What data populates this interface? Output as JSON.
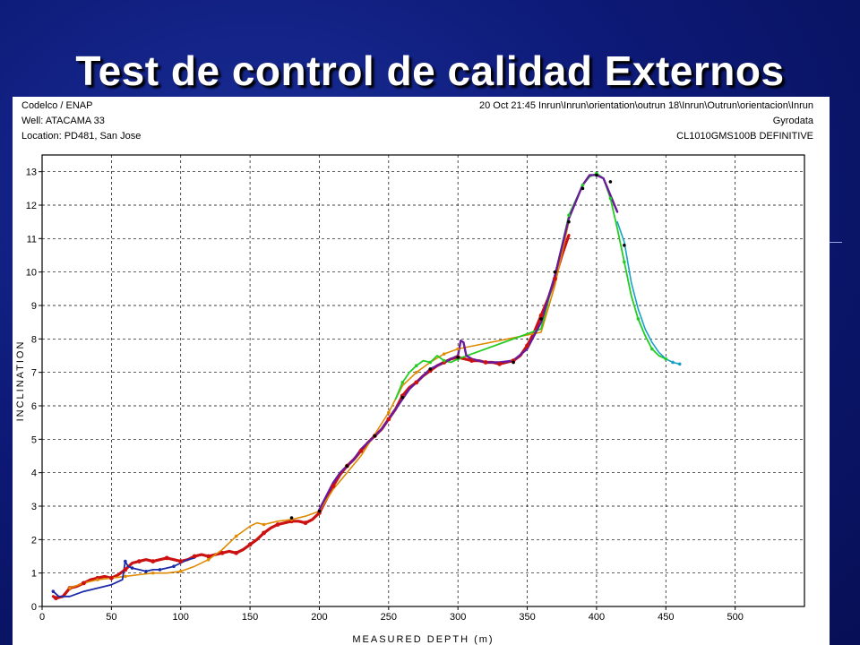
{
  "slide": {
    "title": "Test de control de calidad Externos"
  },
  "header": {
    "left": [
      "Codelco / ENAP",
      "Well: ATACAMA 33",
      "Location: PD481, San Jose"
    ],
    "right": [
      "20 Oct 21:45 Inrun\\Inrun\\orientation\\outrun 18\\Inrun\\Outrun\\orientacion\\Inrun",
      "Gyrodata",
      "CL1010GMS100B DEFINITIVE"
    ]
  },
  "chart_data": {
    "type": "line",
    "title": "",
    "xlabel": "MEASURED DEPTH (m)",
    "ylabel": "INCLINATION",
    "xlim": [
      0,
      550
    ],
    "ylim": [
      0,
      13.5
    ],
    "xticks": [
      0,
      50,
      100,
      150,
      200,
      250,
      300,
      350,
      400,
      450,
      500
    ],
    "yticks": [
      0,
      1,
      2,
      3,
      4,
      5,
      6,
      7,
      8,
      9,
      10,
      11,
      12,
      13
    ],
    "grid": true,
    "colors": {
      "red": "#cc1111",
      "orange": "#e08a00",
      "blue": "#1a2aa8",
      "green": "#22cc22",
      "cyan": "#18a0c8",
      "purple": "#6a1a9a",
      "black": "#000000"
    },
    "series": [
      {
        "color": "red",
        "x": [
          8,
          10,
          15,
          20,
          25,
          30,
          35,
          40,
          45,
          50,
          55,
          60,
          65,
          70,
          75,
          80,
          85,
          90,
          95,
          100,
          105,
          110,
          115,
          120,
          125,
          130,
          135,
          140,
          145,
          150,
          155,
          160,
          165,
          170,
          175,
          180,
          185,
          190,
          195,
          200,
          205,
          210,
          215,
          220,
          225,
          230,
          235,
          240,
          245,
          250,
          255,
          260,
          265,
          270,
          275,
          280,
          285,
          290,
          295,
          300,
          305,
          310,
          315,
          320,
          325,
          330,
          335,
          340,
          345,
          350,
          355,
          360,
          365,
          370,
          375,
          380
        ],
        "y": [
          0.3,
          0.25,
          0.3,
          0.55,
          0.6,
          0.7,
          0.8,
          0.85,
          0.9,
          0.85,
          0.95,
          1.1,
          1.3,
          1.35,
          1.4,
          1.35,
          1.4,
          1.45,
          1.4,
          1.35,
          1.4,
          1.5,
          1.55,
          1.5,
          1.55,
          1.6,
          1.65,
          1.6,
          1.7,
          1.85,
          2.0,
          2.2,
          2.35,
          2.45,
          2.5,
          2.55,
          2.55,
          2.5,
          2.6,
          2.8,
          3.2,
          3.6,
          3.95,
          4.2,
          4.4,
          4.65,
          4.9,
          5.1,
          5.3,
          5.6,
          5.9,
          6.3,
          6.55,
          6.7,
          6.9,
          7.05,
          7.2,
          7.3,
          7.4,
          7.45,
          7.4,
          7.35,
          7.35,
          7.3,
          7.3,
          7.25,
          7.3,
          7.35,
          7.5,
          7.8,
          8.2,
          8.7,
          9.2,
          9.8,
          10.5,
          11.1
        ]
      },
      {
        "color": "orange",
        "x": [
          20,
          30,
          40,
          50,
          60,
          70,
          80,
          90,
          100,
          110,
          120,
          130,
          140,
          150,
          155,
          160,
          170,
          180,
          190,
          200,
          210,
          230,
          250,
          260,
          270,
          280,
          290,
          300,
          360,
          370,
          380
        ],
        "y": [
          0.55,
          0.7,
          0.8,
          0.85,
          0.9,
          0.95,
          1.0,
          1.0,
          1.05,
          1.2,
          1.4,
          1.7,
          2.1,
          2.4,
          2.5,
          2.45,
          2.55,
          2.6,
          2.7,
          2.85,
          3.5,
          4.5,
          5.8,
          6.6,
          7.0,
          7.3,
          7.55,
          7.7,
          8.2,
          9.6,
          11.5
        ]
      },
      {
        "color": "blue",
        "x": [
          8,
          12,
          20,
          30,
          40,
          50,
          58,
          60,
          62,
          65,
          70,
          75,
          80,
          85,
          90,
          95,
          100,
          105,
          110
        ],
        "y": [
          0.45,
          0.3,
          0.3,
          0.45,
          0.55,
          0.65,
          0.8,
          1.35,
          1.2,
          1.15,
          1.1,
          1.05,
          1.1,
          1.1,
          1.15,
          1.2,
          1.3,
          1.4,
          1.45
        ]
      },
      {
        "color": "green",
        "x": [
          255,
          260,
          265,
          270,
          275,
          280,
          285,
          290,
          295,
          300,
          360,
          370,
          380,
          390,
          395,
          400,
          405,
          410,
          415,
          420,
          425,
          430,
          435,
          440,
          445,
          450
        ],
        "y": [
          6.2,
          6.7,
          7.0,
          7.2,
          7.35,
          7.3,
          7.5,
          7.35,
          7.3,
          7.4,
          8.3,
          9.9,
          11.7,
          12.6,
          12.85,
          12.95,
          12.8,
          12.2,
          11.3,
          10.3,
          9.3,
          8.6,
          8.1,
          7.7,
          7.5,
          7.4
        ]
      },
      {
        "color": "cyan",
        "x": [
          415,
          420,
          425,
          430,
          435,
          440,
          445,
          450,
          455,
          460
        ],
        "y": [
          11.5,
          10.9,
          9.7,
          8.9,
          8.3,
          7.9,
          7.6,
          7.4,
          7.3,
          7.25
        ]
      },
      {
        "color": "purple",
        "x": [
          200,
          205,
          210,
          215,
          220,
          225,
          230,
          235,
          240,
          245,
          250,
          255,
          260,
          265,
          270,
          275,
          280,
          285,
          290,
          295,
          300,
          302,
          304,
          306,
          310,
          320,
          330,
          340,
          350,
          360,
          370,
          380,
          390,
          395,
          400,
          405,
          410,
          415
        ],
        "y": [
          2.9,
          3.3,
          3.7,
          4.0,
          4.2,
          4.4,
          4.7,
          4.9,
          5.1,
          5.3,
          5.6,
          5.9,
          6.2,
          6.5,
          6.7,
          6.9,
          7.1,
          7.2,
          7.3,
          7.4,
          7.5,
          7.95,
          7.9,
          7.5,
          7.4,
          7.3,
          7.3,
          7.35,
          7.7,
          8.5,
          9.9,
          11.6,
          12.6,
          12.9,
          12.9,
          12.8,
          12.3,
          11.8
        ]
      }
    ],
    "markers": [
      {
        "color": "red",
        "x": [
          10,
          20,
          30,
          40,
          50,
          60,
          70,
          80,
          90,
          100,
          110,
          120,
          130,
          140,
          150,
          160,
          170,
          180,
          190,
          200,
          210,
          220,
          230,
          240,
          250,
          260,
          270,
          280,
          290,
          300,
          310,
          320,
          330,
          340,
          350,
          360,
          370
        ],
        "y": [
          0.25,
          0.55,
          0.7,
          0.85,
          0.85,
          1.1,
          1.35,
          1.35,
          1.45,
          1.35,
          1.5,
          1.5,
          1.6,
          1.6,
          1.85,
          2.2,
          2.45,
          2.55,
          2.5,
          2.8,
          3.6,
          4.2,
          4.65,
          5.1,
          5.6,
          6.3,
          6.7,
          7.05,
          7.3,
          7.45,
          7.35,
          7.3,
          7.25,
          7.35,
          7.8,
          8.7,
          9.8
        ]
      },
      {
        "color": "orange",
        "x": [
          20,
          40,
          60,
          80,
          100,
          120,
          140,
          160,
          180,
          200,
          250,
          270,
          290,
          300
        ],
        "y": [
          0.55,
          0.8,
          0.9,
          1.0,
          1.05,
          1.4,
          2.1,
          2.45,
          2.6,
          2.85,
          5.8,
          7.0,
          7.55,
          7.7
        ]
      },
      {
        "color": "blue",
        "x": [
          8,
          60,
          65,
          75,
          85,
          95
        ],
        "y": [
          0.45,
          1.35,
          1.15,
          1.05,
          1.1,
          1.2
        ]
      },
      {
        "color": "green",
        "x": [
          260,
          270,
          280,
          290,
          300,
          380,
          390,
          400,
          410,
          420,
          430,
          440,
          450
        ],
        "y": [
          6.7,
          7.2,
          7.3,
          7.35,
          7.4,
          11.7,
          12.6,
          12.95,
          12.2,
          10.3,
          8.6,
          7.7,
          7.4
        ]
      },
      {
        "color": "black",
        "x": [
          180,
          200,
          220,
          240,
          260,
          280,
          300,
          340,
          360,
          370,
          380,
          390,
          400,
          410,
          420
        ],
        "y": [
          2.65,
          2.85,
          4.2,
          5.1,
          6.25,
          7.1,
          7.45,
          7.3,
          8.6,
          10.0,
          11.5,
          12.5,
          12.9,
          12.7,
          10.8
        ]
      },
      {
        "color": "cyan",
        "x": [
          455,
          460
        ],
        "y": [
          7.3,
          7.25
        ]
      }
    ]
  }
}
